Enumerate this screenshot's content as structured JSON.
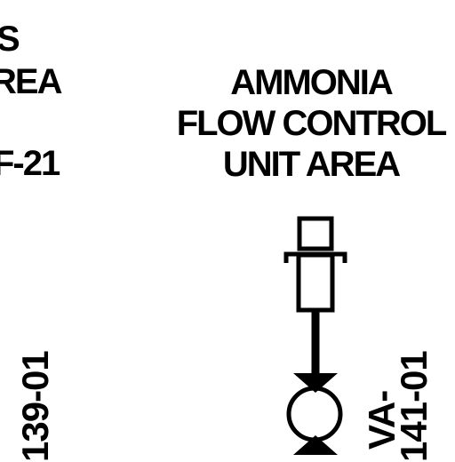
{
  "left_area": {
    "line1": "S",
    "line2": "REA",
    "line3": "F-21"
  },
  "center_area": {
    "line1": "AMMONIA",
    "line2": "FLOW CONTROL",
    "line3": "UNIT AREA"
  },
  "left_valve_label": "139-01",
  "right_valve_label_line1": "VA-",
  "right_valve_label_line2": "141-01"
}
